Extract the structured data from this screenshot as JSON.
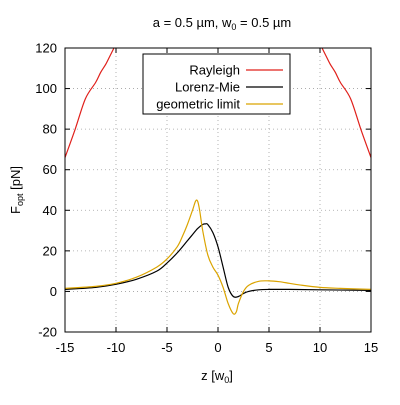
{
  "chart_data": {
    "type": "line",
    "title": "a = 0.5 µm, w",
    "title_sub": "0",
    "title_tail": " = 0.5 µm",
    "xlabel": "z [w",
    "xlabel_sub": "0",
    "xlabel_tail": "]",
    "ylabel": "F",
    "ylabel_sub": "opt",
    "ylabel_tail": " [pN]",
    "xlim": [
      -15,
      15
    ],
    "ylim": [
      -20,
      120
    ],
    "xticks": [
      -15,
      -10,
      -5,
      0,
      5,
      10,
      15
    ],
    "yticks": [
      -20,
      0,
      20,
      40,
      60,
      80,
      100,
      120
    ],
    "grid": true,
    "legend_position": "top-center",
    "series": [
      {
        "name": "Rayleigh",
        "color": "#e0201b",
        "x": [
          -15,
          -14,
          -13,
          -12,
          -11.5,
          -11,
          -10.6,
          -10.2,
          10.2,
          10.6,
          11,
          11.5,
          12,
          13,
          14,
          15
        ],
        "y": [
          66,
          80,
          95,
          103,
          108,
          112,
          116,
          120,
          120,
          116,
          112,
          108,
          103,
          95,
          80,
          66
        ]
      },
      {
        "name": "Lorenz-Mie",
        "color": "#000000",
        "x": [
          -15,
          -12,
          -10,
          -8,
          -6,
          -5,
          -4,
          -3,
          -2.5,
          -2,
          -1.5,
          -1.2,
          -1,
          -0.5,
          0,
          0.5,
          1,
          1.5,
          2,
          2.5,
          3,
          4,
          5,
          7,
          10,
          15
        ],
        "y": [
          1,
          2,
          3.5,
          6,
          10,
          14,
          19,
          25,
          28,
          31,
          33,
          33.3,
          33,
          29,
          22,
          12,
          2,
          -2.5,
          -2.5,
          -1,
          0,
          0.8,
          1,
          1,
          0.8,
          0.5
        ],
        "y_note": ""
      },
      {
        "name": "geometric limit",
        "color": "#dba400",
        "x": [
          -15,
          -12,
          -10,
          -8,
          -6,
          -5,
          -4,
          -3.5,
          -3,
          -2.5,
          -2.2,
          -2,
          -1.8,
          -1.5,
          -1,
          -0.5,
          0,
          0.5,
          1,
          1.5,
          1.8,
          2,
          2.5,
          3,
          4,
          5,
          6,
          7,
          8,
          10,
          12,
          15
        ],
        "y": [
          1.5,
          2.5,
          4,
          7,
          12,
          16,
          22,
          27,
          33,
          40,
          44.5,
          44.5,
          40,
          30,
          18,
          12,
          8,
          2,
          -6,
          -11,
          -10,
          -6,
          0,
          3,
          5,
          5.2,
          4.8,
          4,
          3.2,
          2,
          1.5,
          1
        ]
      }
    ]
  }
}
